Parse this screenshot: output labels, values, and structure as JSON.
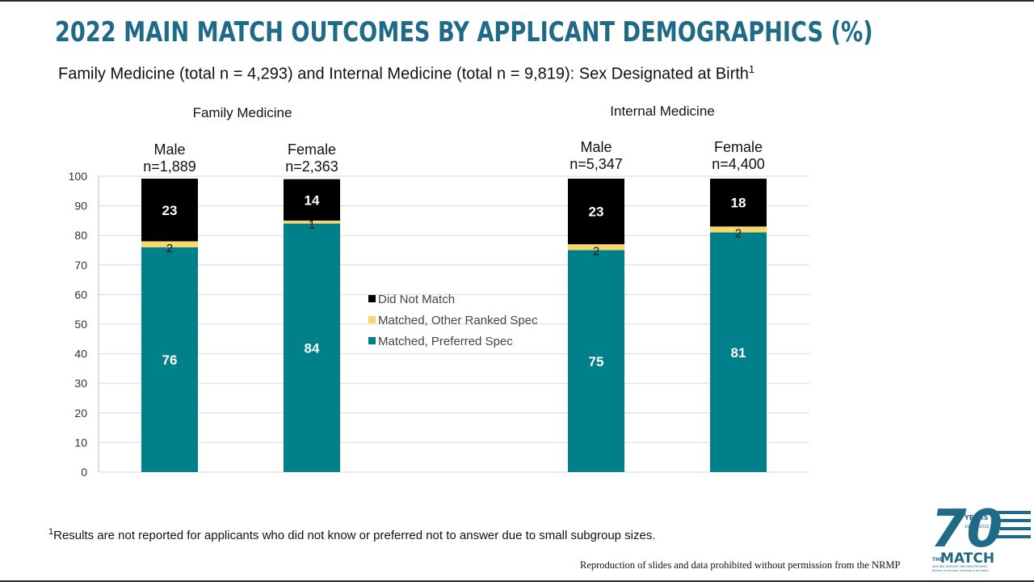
{
  "slide": {
    "title": "2022 MAIN MATCH OUTCOMES BY APPLICANT DEMOGRAPHICS (%)",
    "subtitle": "Family Medicine (total n = 4,293) and Internal Medicine (total n = 9,819):  Sex Designated at Birth",
    "subtitle_superscript": "1",
    "footnote_marker": "1",
    "footnote": "Results are not reported for applicants who did not know or preferred not to answer due to small subgroup sizes.",
    "reproduction_notice": "Reproduction of slides and data prohibited without permission from the NRMP"
  },
  "logo": {
    "number": "70",
    "years_label": "YEARS",
    "years_range": "1952 - 2022",
    "brand_prefix": "THE",
    "brand": "MATCH",
    "brand_subtitle": "NATIONAL RESIDENT MATCHING PROGRAM",
    "tagline": "Building on the past, investing in the future",
    "color": "#1f6a86"
  },
  "chart_data": {
    "type": "bar",
    "stacked": true,
    "ylim": [
      0,
      100
    ],
    "yticks": [
      0,
      10,
      20,
      30,
      40,
      50,
      60,
      70,
      80,
      90,
      100
    ],
    "grid": true,
    "legend_position": "center",
    "groups": [
      {
        "label": "Family Medicine",
        "categories": [
          {
            "name": "Male",
            "n_label": "n=1,889"
          },
          {
            "name": "Female",
            "n_label": "n=2,363"
          }
        ]
      },
      {
        "label": "Internal Medicine",
        "categories": [
          {
            "name": "Male",
            "n_label": "n=5,347"
          },
          {
            "name": "Female",
            "n_label": "n=4,400"
          }
        ]
      }
    ],
    "series": [
      {
        "name": "Matched, Preferred Spec",
        "color": "#00808a",
        "label_color": "#ffffff",
        "values": [
          76,
          84,
          75,
          81
        ]
      },
      {
        "name": "Matched, Other Ranked Spec",
        "color": "#f7d96b",
        "label_color": "#111111",
        "values": [
          2,
          1,
          2,
          2
        ]
      },
      {
        "name": "Did Not Match",
        "color": "#000000",
        "label_color": "#ffffff",
        "values": [
          23,
          14,
          23,
          18
        ]
      }
    ],
    "legend_order": [
      "Did Not Match",
      "Matched, Other Ranked Spec",
      "Matched, Preferred Spec"
    ]
  }
}
